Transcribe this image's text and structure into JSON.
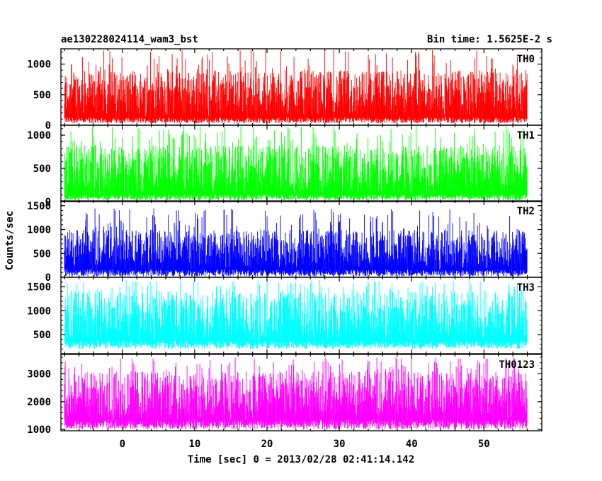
{
  "header": {
    "title": "ae130228024114_wam3_bst",
    "bin_time": "Bin time: 1.5625E-2 s"
  },
  "chart_data": {
    "type": "line",
    "xlabel": "Time [sec] 0 = 2013/02/28 02:41:14.142",
    "ylabel": "Counts/sec",
    "xlim": [
      -8.5,
      58
    ],
    "x_ticks": [
      0,
      10,
      20,
      30,
      40,
      50
    ],
    "x_tick_labels": [
      "0",
      "10",
      "20",
      "30",
      "40",
      "50"
    ],
    "data_x_range": [
      -8,
      56
    ],
    "bin_time": 0.015625,
    "panels": [
      {
        "name": "TH0",
        "color": "#ff0000",
        "ylim": [
          0,
          1250
        ],
        "y_ticks": [
          0,
          500,
          1000
        ],
        "y_tick_labels": [
          "0",
          "500",
          "1000"
        ],
        "baseline": 30,
        "typical_low": 120,
        "typical_high": 900,
        "peak": 1250
      },
      {
        "name": "TH1",
        "color": "#00ff00",
        "ylim": [
          0,
          1150
        ],
        "y_ticks": [
          0,
          500,
          1000
        ],
        "y_tick_labels": [
          "0",
          "500",
          "1000"
        ],
        "baseline": 20,
        "typical_low": 100,
        "typical_high": 850,
        "peak": 1150
      },
      {
        "name": "TH2",
        "color": "#0000ff",
        "ylim": [
          0,
          1600
        ],
        "y_ticks": [
          0,
          500,
          1000,
          1500
        ],
        "y_tick_labels": [
          "0",
          "500",
          "1000",
          "1500"
        ],
        "baseline": 20,
        "typical_low": 150,
        "typical_high": 1000,
        "peak": 1450
      },
      {
        "name": "TH3",
        "color": "#00ffff",
        "ylim": [
          100,
          1700
        ],
        "y_ticks": [
          500,
          1000,
          1500
        ],
        "y_tick_labels": [
          "500",
          "1000",
          "1500"
        ],
        "baseline": 200,
        "typical_low": 350,
        "typical_high": 1400,
        "peak": 1650
      },
      {
        "name": "TH0123",
        "color": "#ff00ff",
        "ylim": [
          950,
          3700
        ],
        "y_ticks": [
          1000,
          2000,
          3000
        ],
        "y_tick_labels": [
          "1000",
          "2000",
          "3000"
        ],
        "baseline": 1000,
        "typical_low": 1300,
        "typical_high": 3100,
        "peak": 3600
      }
    ]
  }
}
